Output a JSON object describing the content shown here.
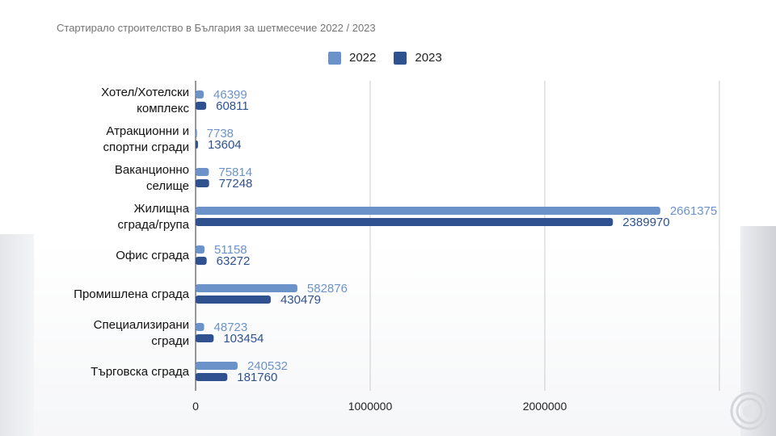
{
  "chart_data": {
    "type": "bar",
    "orientation": "horizontal",
    "title": "Стартирало строителство в България за шетмесечие 2022 / 2023",
    "categories": [
      [
        "Хотел/Хотелски",
        "комплекс"
      ],
      [
        "Атракционни и",
        "спортни сгради"
      ],
      [
        "Ваканционно",
        "селище"
      ],
      [
        "Жилищна",
        "сграда/група"
      ],
      [
        "Офис сграда"
      ],
      [
        "Промишлена сграда"
      ],
      [
        "Специализирани",
        "сгради"
      ],
      [
        "Търговска сграда"
      ]
    ],
    "series": [
      {
        "name": "2022",
        "color": "#6b93c9",
        "values": [
          46399,
          7738,
          75814,
          2661375,
          51158,
          582876,
          48723,
          240532
        ]
      },
      {
        "name": "2023",
        "color": "#2f5190",
        "values": [
          60811,
          13604,
          77248,
          2389970,
          63272,
          430479,
          103454,
          181760
        ]
      }
    ],
    "xlim": [
      0,
      3000000
    ],
    "xticks": [
      0,
      1000000,
      2000000
    ],
    "grid": true,
    "legend_position": "top-center"
  }
}
